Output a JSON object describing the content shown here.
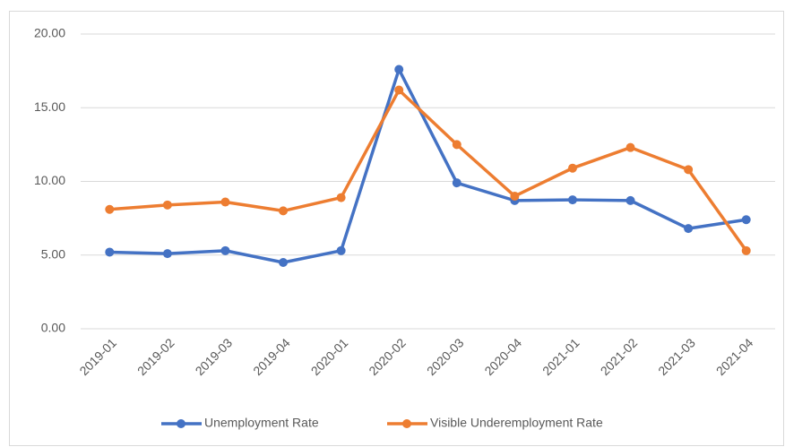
{
  "chart_data": {
    "type": "line",
    "categories": [
      "2019-01",
      "2019-02",
      "2019-03",
      "2019-04",
      "2020-01",
      "2020-02",
      "2020-03",
      "2020-04",
      "2021-01",
      "2021-02",
      "2021-03",
      "2021-04"
    ],
    "series": [
      {
        "name": "Unemployment Rate",
        "color": "#4472c4",
        "values": [
          5.2,
          5.1,
          5.3,
          4.5,
          5.3,
          17.6,
          9.9,
          8.7,
          8.75,
          8.7,
          6.8,
          7.4
        ]
      },
      {
        "name": "Visible Underemployment Rate",
        "color": "#ed7d31",
        "values": [
          8.1,
          8.4,
          8.6,
          8.0,
          8.9,
          16.2,
          12.5,
          9.0,
          10.9,
          12.3,
          10.8,
          5.3
        ]
      }
    ],
    "ylim": [
      0,
      20
    ],
    "yticks": [
      {
        "value": 0,
        "label": "0.00"
      },
      {
        "value": 5,
        "label": "5.00"
      },
      {
        "value": 10,
        "label": "10.00"
      },
      {
        "value": 15,
        "label": "15.00"
      },
      {
        "value": 20,
        "label": "20.00"
      }
    ],
    "grid": true,
    "legend": "bottom"
  }
}
